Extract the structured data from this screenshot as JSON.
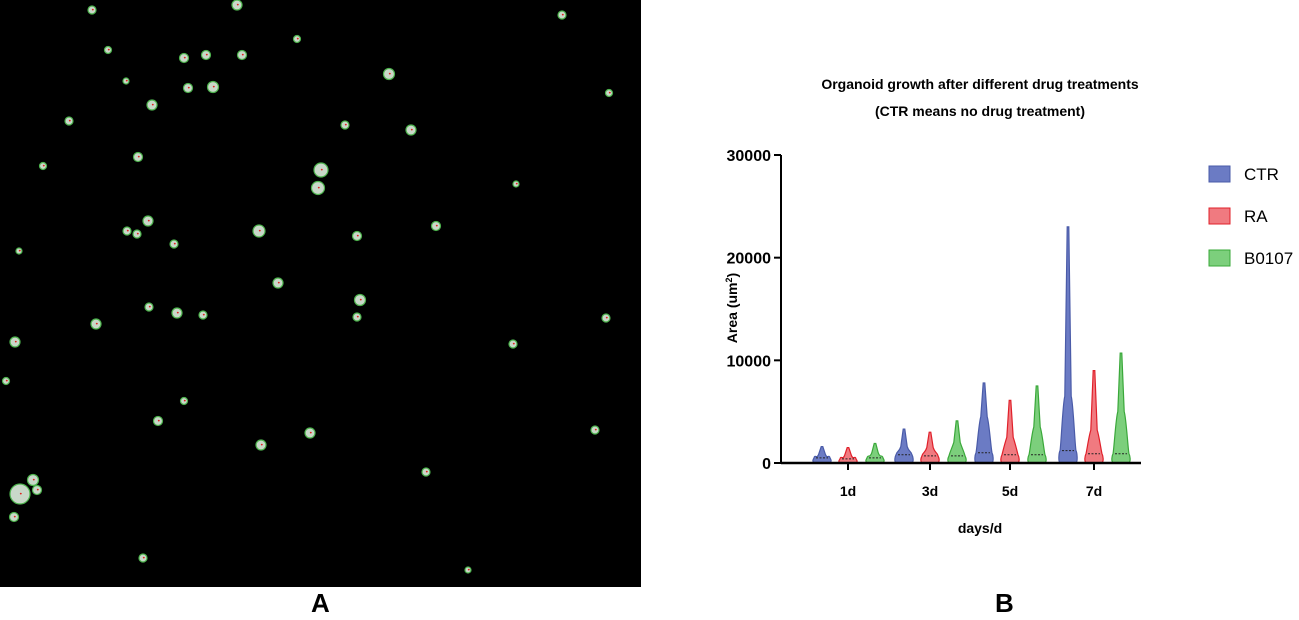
{
  "panel_labels": {
    "a": "A",
    "b": "B"
  },
  "image_a": {
    "background": "#000000",
    "organoid_fill": "#c9d8c9",
    "organoid_edge": "#4db34d",
    "marker_color": "#e0201c"
  },
  "chart_data": {
    "type": "violin",
    "title_line1": "Organoid growth after different drug treatments",
    "title_line2": "(CTR means no drug treatment)",
    "xlabel": "days/d",
    "ylabel": "Area (um",
    "ylabel_sup": "2",
    "ylabel_close": ")",
    "ylim": [
      0,
      30000
    ],
    "yticks": [
      "0",
      "10000",
      "20000",
      "30000"
    ],
    "categories": [
      "1d",
      "3d",
      "5d",
      "7d"
    ],
    "legend_position": "right",
    "series": [
      {
        "name": "CTR",
        "color": "#4a5ba8",
        "fill": "#6b7bc4",
        "max": [
          1600,
          3300,
          7800,
          23000
        ],
        "median": [
          500,
          800,
          1000,
          1200
        ],
        "bulk": [
          900,
          1600,
          4500,
          6500
        ]
      },
      {
        "name": "RA",
        "color": "#e0202a",
        "fill": "#f07a80",
        "max": [
          1500,
          3000,
          6100,
          9000
        ],
        "median": [
          400,
          700,
          800,
          900
        ],
        "bulk": [
          800,
          1500,
          2500,
          3200
        ]
      },
      {
        "name": "B0107",
        "color": "#3aa83a",
        "fill": "#7ccf7c",
        "max": [
          1900,
          4100,
          7500,
          10700
        ],
        "median": [
          500,
          700,
          800,
          900
        ],
        "bulk": [
          1000,
          2000,
          3500,
          5000
        ]
      }
    ]
  }
}
